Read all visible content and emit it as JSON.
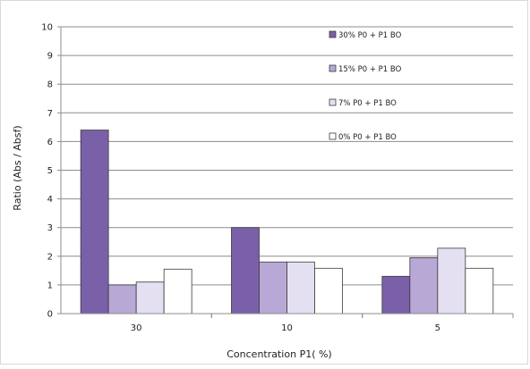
{
  "chart_data": {
    "type": "bar",
    "title": "",
    "xlabel": "Concentration P1( %)",
    "ylabel": "Ratio (Abs / Absf)",
    "ylim": [
      0,
      10
    ],
    "yticks": [
      "0",
      "1",
      "2",
      "3",
      "4",
      "5",
      "6",
      "7",
      "8",
      "9",
      "10"
    ],
    "categories": [
      "30",
      "10",
      "5"
    ],
    "grid": true,
    "legend_position": "top-right",
    "series": [
      {
        "name": "30% P0 + P1 BO",
        "color": "#7a60a8",
        "values": [
          6.4,
          3.0,
          1.3
        ]
      },
      {
        "name": "15% P0 + P1 BO",
        "color": "#b8a8d6",
        "values": [
          1.0,
          1.8,
          1.95
        ]
      },
      {
        "name": "7% P0 + P1 BO",
        "color": "#e4e0f2",
        "values": [
          1.1,
          1.8,
          2.28
        ]
      },
      {
        "name": "0% P0 + P1 BO",
        "color": "#ffffff",
        "values": [
          1.55,
          1.58,
          1.58
        ]
      }
    ]
  }
}
